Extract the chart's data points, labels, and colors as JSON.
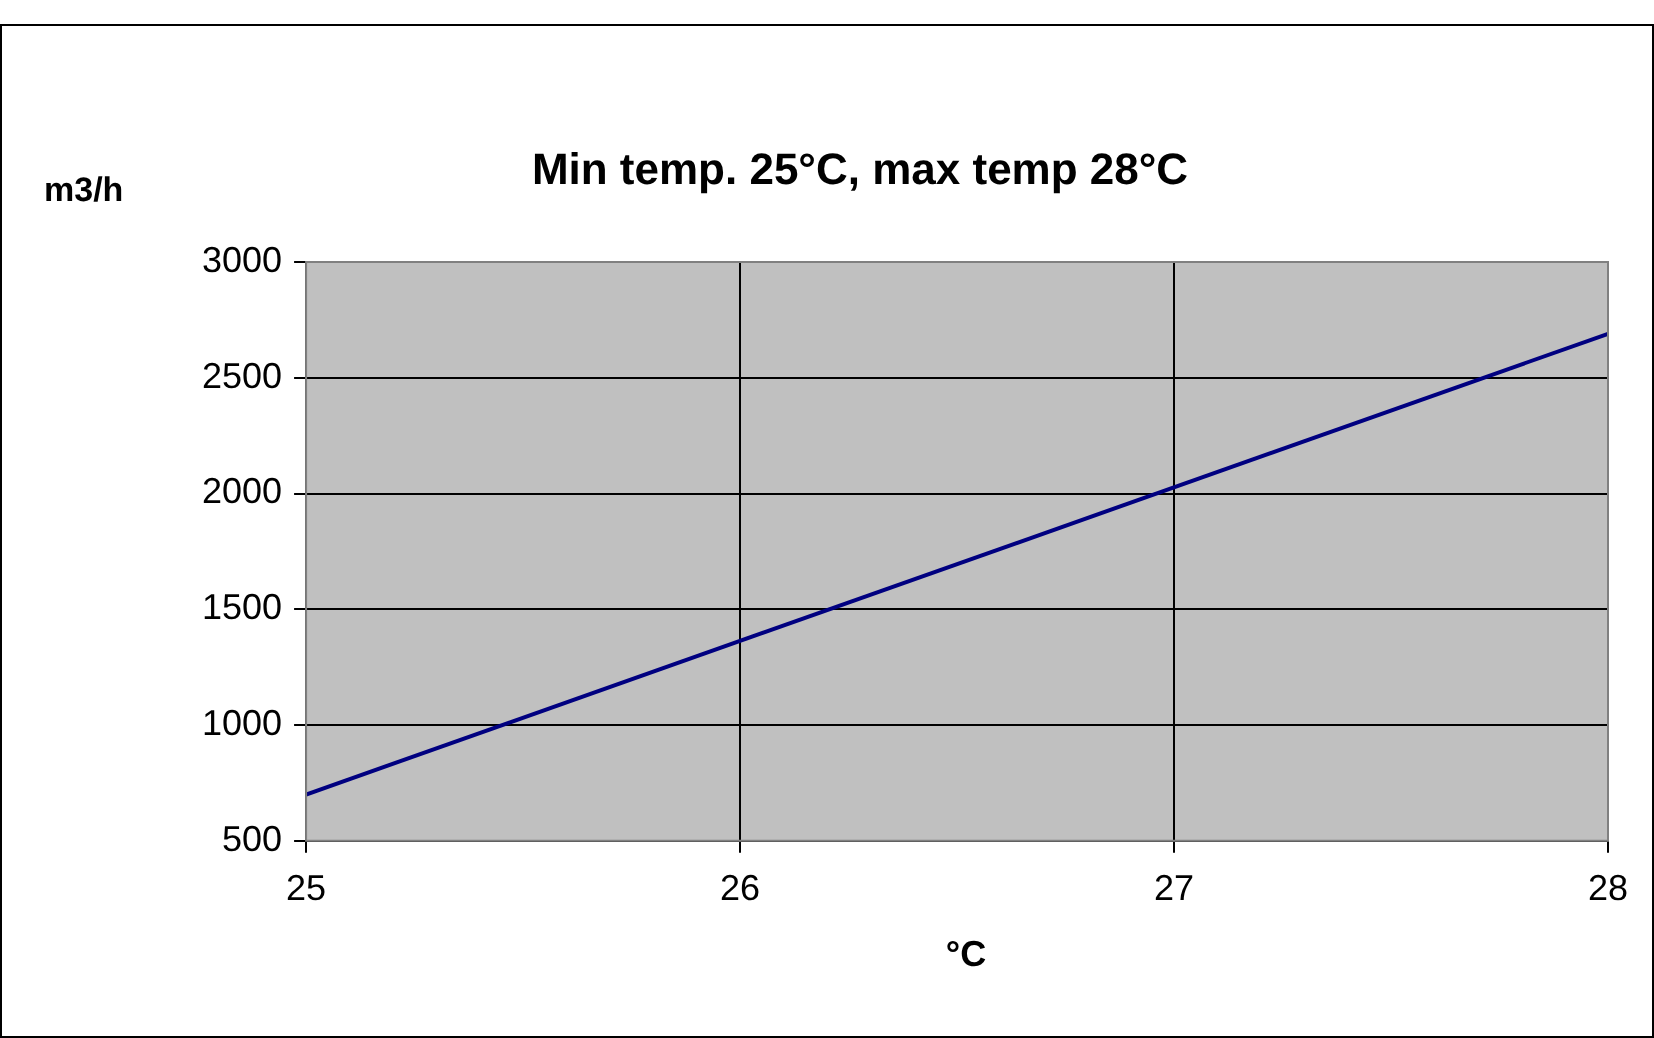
{
  "chart_data": {
    "type": "line",
    "title": "Min temp. 25°C, max temp 28°C",
    "xlabel": "°C",
    "ylabel": "m3/h",
    "x": [
      25,
      28
    ],
    "series": [
      {
        "color": "#000080",
        "values": [
          700,
          2690
        ]
      }
    ],
    "xlim": [
      25,
      28
    ],
    "xticks": [
      25,
      26,
      27,
      28
    ],
    "ylim": [
      500,
      3000
    ],
    "yticks": [
      500,
      1000,
      1500,
      2000,
      2500,
      3000
    ],
    "grid": true,
    "legend": false,
    "marker": "none",
    "line_style": "solid"
  }
}
